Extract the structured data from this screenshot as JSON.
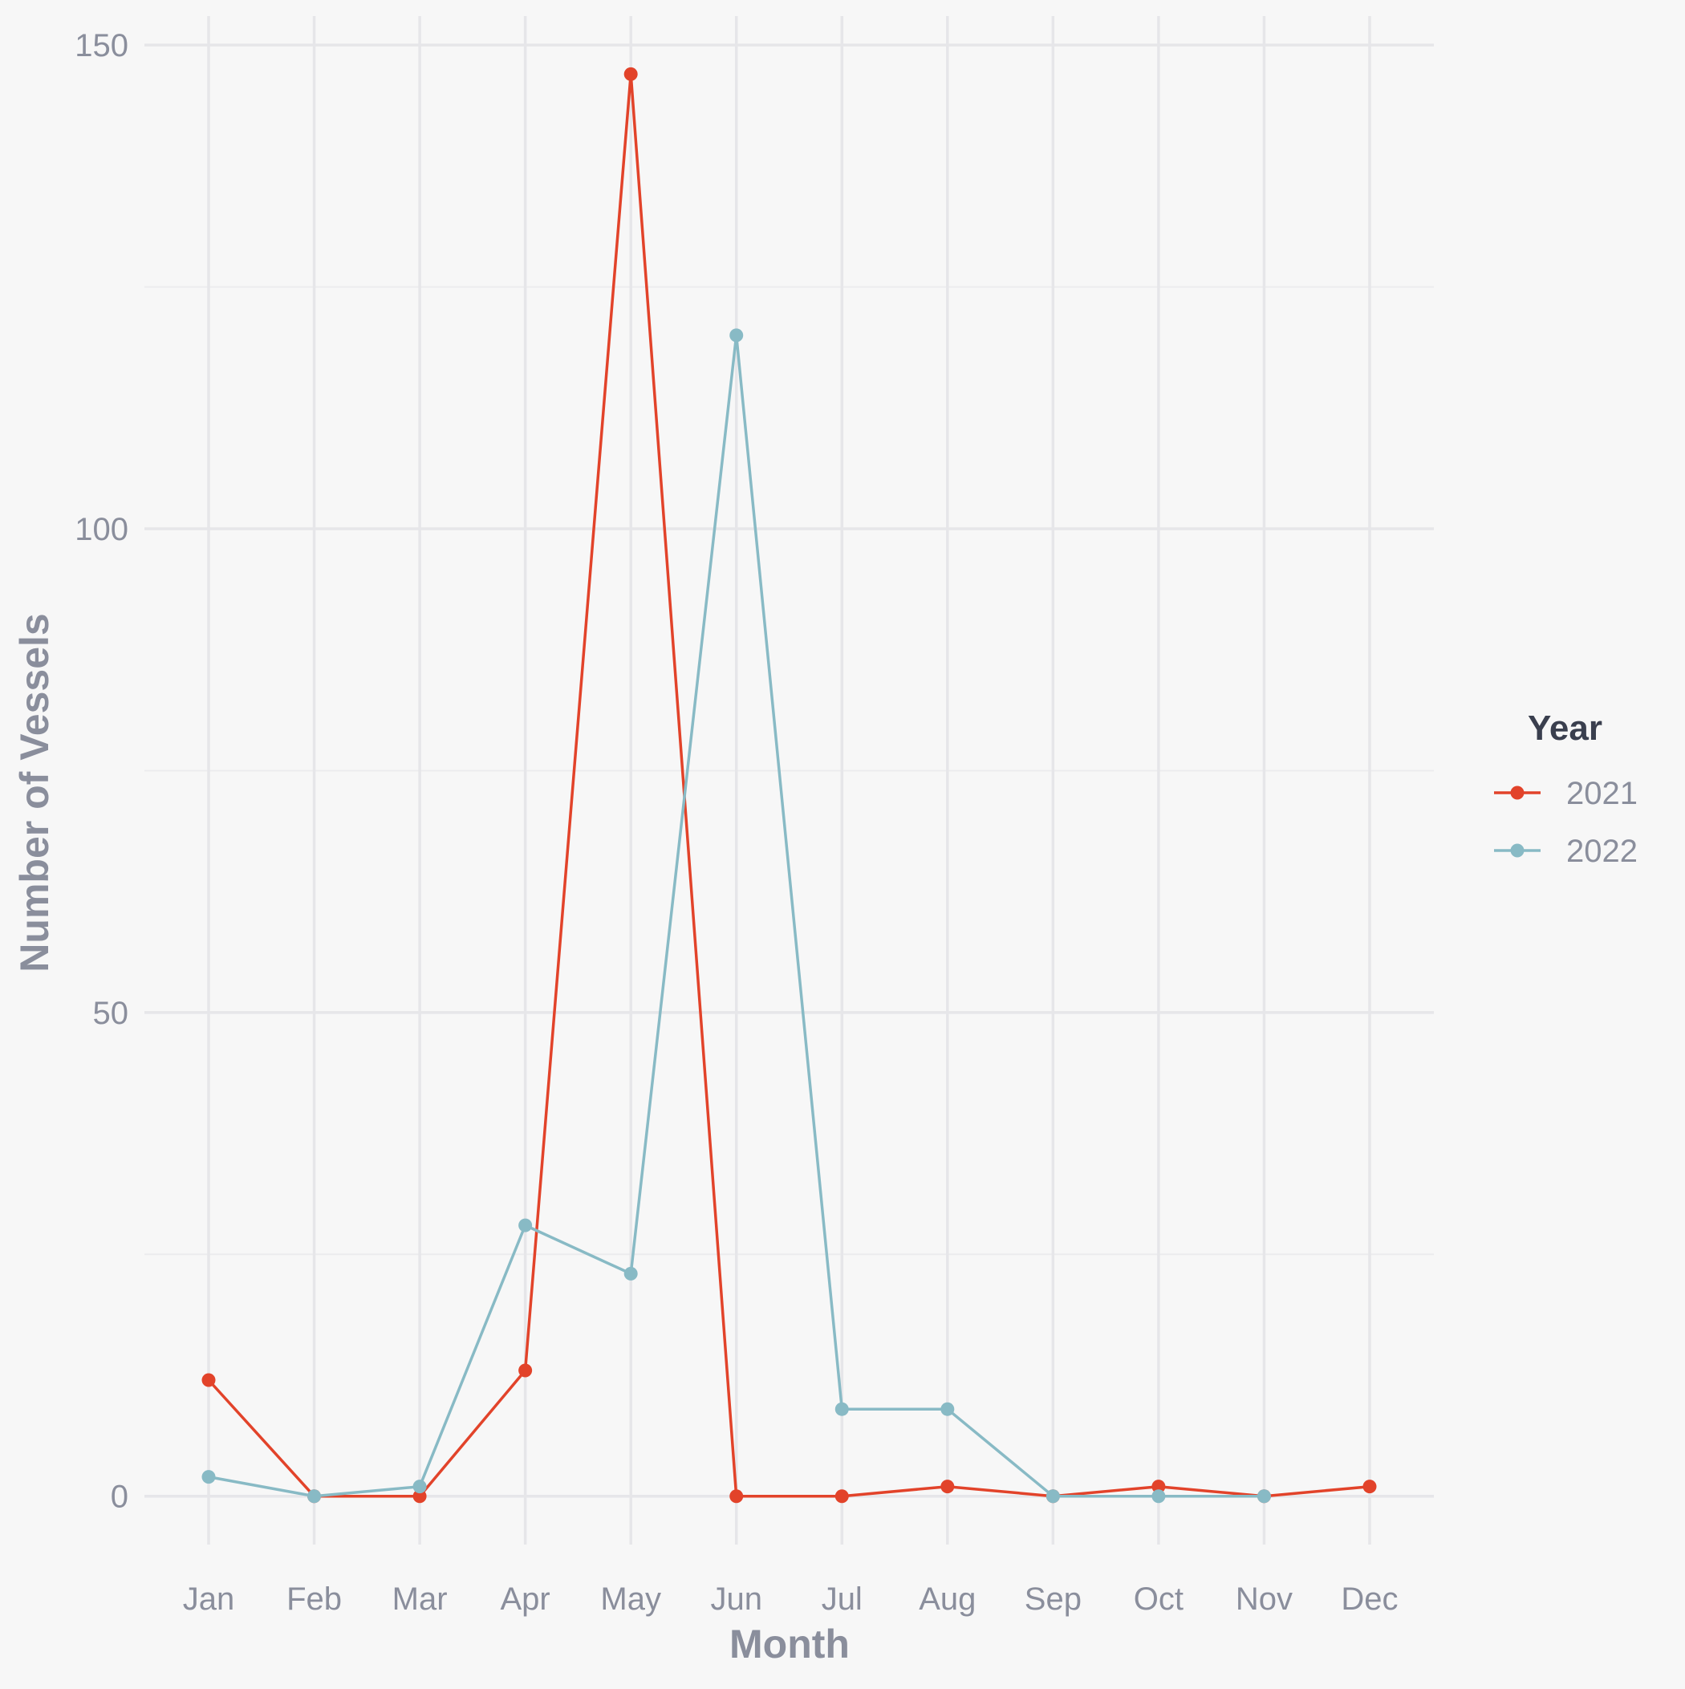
{
  "chart_data": {
    "type": "line",
    "title": "",
    "xlabel": "Month",
    "ylabel": "Number of Vessels",
    "categories": [
      "Jan",
      "Feb",
      "Mar",
      "Apr",
      "May",
      "Jun",
      "Jul",
      "Aug",
      "Sep",
      "Oct",
      "Nov",
      "Dec"
    ],
    "yticks": [
      "0",
      "50",
      "100",
      "150"
    ],
    "ylim": [
      -5,
      153
    ],
    "grid": true,
    "legend": {
      "title": "Year",
      "placement": "right"
    },
    "series": [
      {
        "name": "2021",
        "color": "#e2432a",
        "values": [
          12,
          0,
          0,
          13,
          147,
          0,
          0,
          1,
          0,
          1,
          0,
          1
        ]
      },
      {
        "name": "2022",
        "color": "#88bac5",
        "values": [
          2,
          0,
          1,
          28,
          23,
          120,
          9,
          9,
          0,
          0,
          0,
          null
        ]
      }
    ]
  }
}
